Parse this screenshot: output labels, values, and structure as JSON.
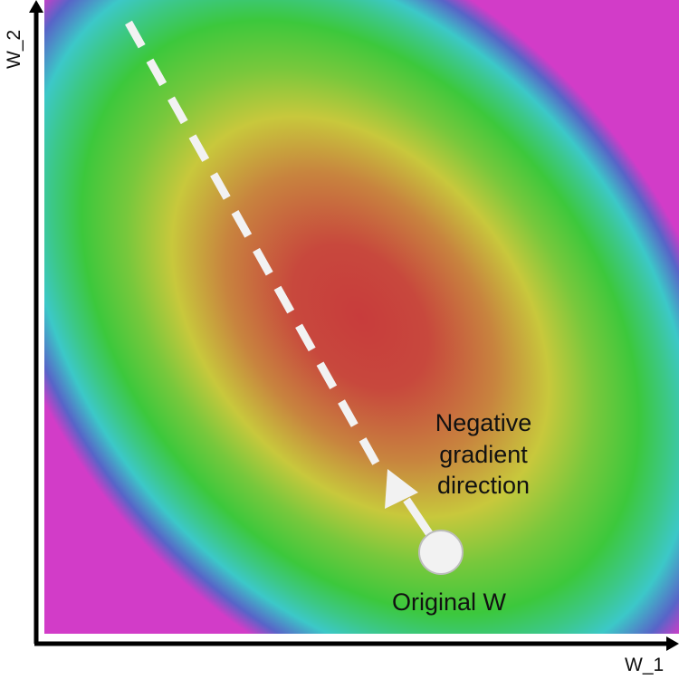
{
  "axes": {
    "x_label": "W_1",
    "y_label": "W_2"
  },
  "annotations": {
    "gradient_label_lines": [
      "Negative",
      "gradient",
      "direction"
    ],
    "point_label": "Original W"
  },
  "colors": {
    "contour_center": "#c83c3c",
    "contour_mid": "#c8c83c",
    "contour_outer": "#3cc83c",
    "contour_far": "#3cc8c8",
    "contour_edge": "#6a2cc8",
    "arrow": "#f2f2f2",
    "axis": "#000000"
  },
  "icons": {
    "point": "circle-marker",
    "arrow": "arrow-up-icon"
  }
}
